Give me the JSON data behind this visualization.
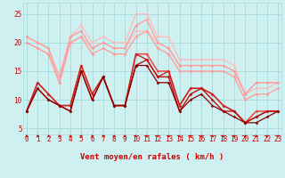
{
  "background_color": "#cff0f0",
  "grid_color": "#aadddd",
  "xlabel": "Vent moyen/en rafales ( km/h )",
  "ylabel_ticks": [
    5,
    10,
    15,
    20,
    25
  ],
  "xlim": [
    -0.3,
    23.3
  ],
  "ylim": [
    4.0,
    27.0
  ],
  "arrow_color": "#cc0000",
  "lines": [
    {
      "color": "#ffbbbb",
      "data": [
        21,
        20,
        19,
        13,
        21,
        23,
        20,
        21,
        20,
        20,
        25,
        25,
        21,
        21,
        17,
        17,
        17,
        17,
        17,
        16,
        11,
        13,
        13,
        13
      ],
      "lw": 0.9
    },
    {
      "color": "#ffbbbb",
      "data": [
        20,
        19,
        18,
        13,
        20,
        21,
        19,
        20,
        19,
        19,
        22,
        22,
        20,
        19,
        16,
        16,
        16,
        16,
        16,
        15,
        11,
        12,
        12,
        13
      ],
      "lw": 0.9
    },
    {
      "color": "#ff9999",
      "data": [
        21,
        20,
        19,
        14,
        21,
        22,
        19,
        20,
        19,
        19,
        23,
        24,
        20,
        19,
        16,
        16,
        16,
        16,
        16,
        15,
        11,
        13,
        13,
        13
      ],
      "lw": 0.9
    },
    {
      "color": "#ff9999",
      "data": [
        20,
        19,
        18,
        13,
        20,
        21,
        18,
        19,
        18,
        18,
        21,
        22,
        19,
        18,
        15,
        15,
        15,
        15,
        15,
        14,
        10,
        11,
        11,
        12
      ],
      "lw": 0.9
    },
    {
      "color": "#ee4444",
      "data": [
        8,
        13,
        11,
        9,
        9,
        16,
        11,
        14,
        9,
        9,
        18,
        18,
        15,
        15,
        9,
        12,
        12,
        11,
        9,
        8,
        6,
        8,
        8,
        8
      ],
      "lw": 1.1
    },
    {
      "color": "#cc2222",
      "data": [
        8,
        13,
        11,
        9,
        9,
        16,
        11,
        14,
        9,
        9,
        18,
        17,
        14,
        15,
        9,
        12,
        12,
        11,
        9,
        8,
        6,
        7,
        8,
        8
      ],
      "lw": 1.0
    },
    {
      "color": "#bb1111",
      "data": [
        8,
        12,
        10,
        9,
        8,
        15,
        10,
        14,
        9,
        9,
        16,
        17,
        14,
        14,
        8,
        11,
        12,
        10,
        8,
        8,
        6,
        7,
        8,
        8
      ],
      "lw": 1.0
    },
    {
      "color": "#880000",
      "data": [
        8,
        12,
        10,
        9,
        8,
        15,
        10,
        14,
        9,
        9,
        16,
        16,
        13,
        13,
        8,
        10,
        11,
        9,
        8,
        7,
        6,
        6,
        7,
        8
      ],
      "lw": 0.9
    }
  ],
  "tick_label_color": "#cc0000",
  "tick_label_size": 5.5,
  "xlabel_fontsize": 6.5,
  "marker": "D",
  "markersize": 1.8
}
